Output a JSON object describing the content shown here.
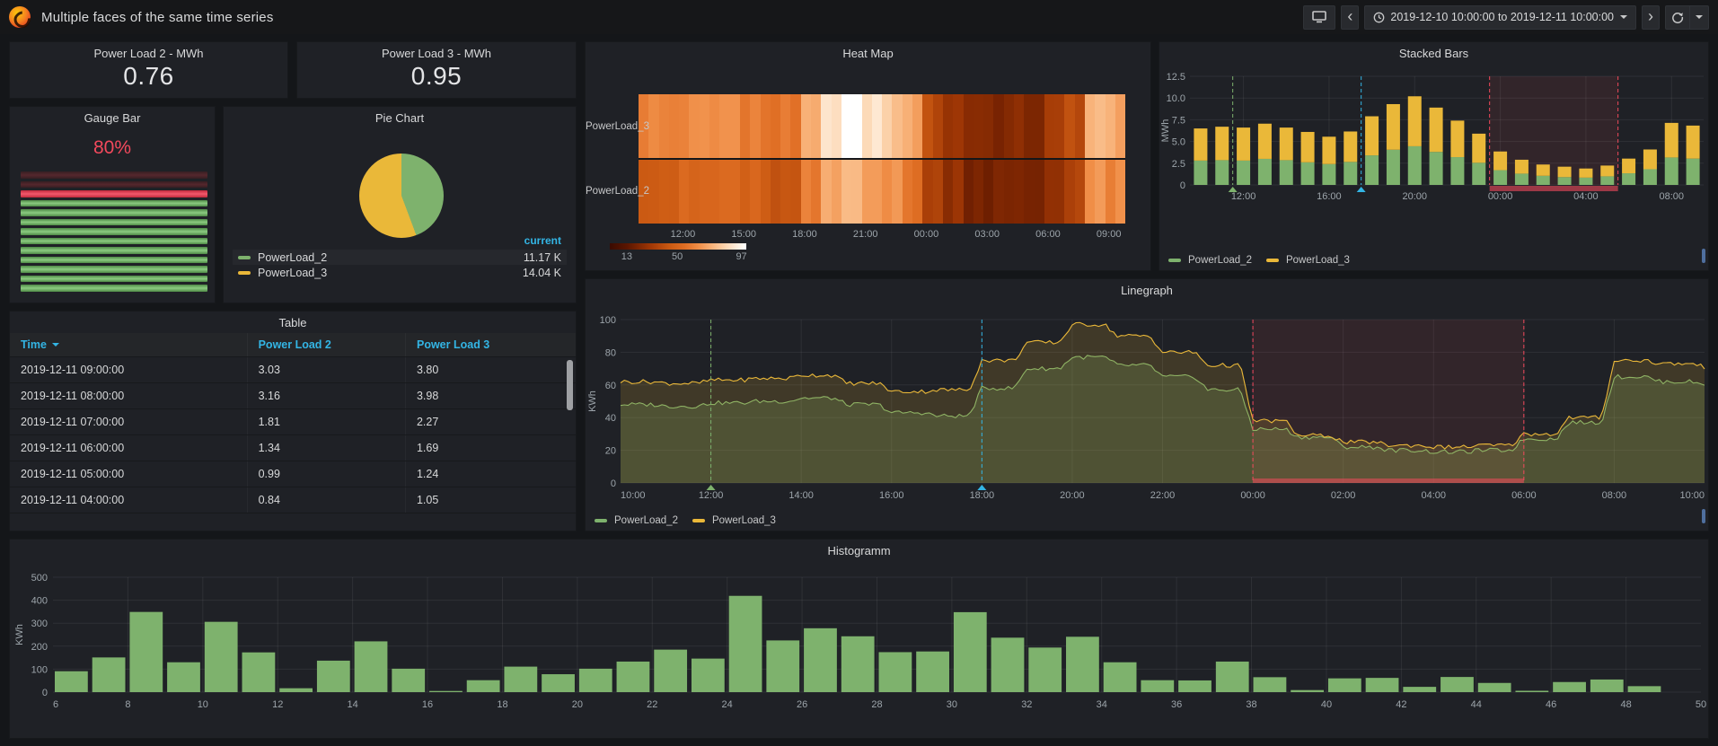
{
  "colors": {
    "green": "#7EB26D",
    "yellow": "#EAB839",
    "red": "#F2495C",
    "cyan": "#33B5E5",
    "blue_header": "#33B5E5",
    "axis_text": "#9da5ab",
    "grid": "rgba(255,255,255,0.07)"
  },
  "navbar": {
    "title": "Multiple faces of the same time series",
    "time_range": "2019-12-10 10:00:00 to 2019-12-11 10:00:00"
  },
  "panels": {
    "stat_pl2": {
      "title": "Power Load 2 - MWh",
      "value": "0.76"
    },
    "stat_pl3": {
      "title": "Power Load 3 - MWh",
      "value": "0.95"
    },
    "gauge": {
      "title": "Gauge Bar",
      "percent": "80%",
      "cells": [
        "unlit",
        "unlit",
        "threshold",
        "lit",
        "lit",
        "lit",
        "lit",
        "lit",
        "lit",
        "lit",
        "lit",
        "lit",
        "lit"
      ]
    },
    "pie": {
      "title": "Pie Chart",
      "legend_header": "current",
      "chart_data": {
        "type": "pie",
        "slices": [
          {
            "name": "PowerLoad_2",
            "value_label": "11.17 K",
            "value": 11170,
            "fraction": 0.443,
            "color": "#7EB26D"
          },
          {
            "name": "PowerLoad_3",
            "value_label": "14.04 K",
            "value": 14040,
            "fraction": 0.557,
            "color": "#EAB839"
          }
        ]
      }
    },
    "heatmap": {
      "title": "Heat Map",
      "row_labels": [
        "PowerLoad_3",
        "PowerLoad_2"
      ],
      "x_labels": [
        {
          "hour_index": 2,
          "label": "12:00"
        },
        {
          "hour_index": 5,
          "label": "15:00"
        },
        {
          "hour_index": 8,
          "label": "18:00"
        },
        {
          "hour_index": 11,
          "label": "21:00"
        },
        {
          "hour_index": 14,
          "label": "00:00"
        },
        {
          "hour_index": 17,
          "label": "03:00"
        },
        {
          "hour_index": 20,
          "label": "06:00"
        },
        {
          "hour_index": 23,
          "label": "09:00"
        }
      ],
      "scale_ticks": [
        {
          "value": 13,
          "label": "13"
        },
        {
          "value": 50,
          "label": "50"
        },
        {
          "value": 97,
          "label": "97"
        }
      ],
      "color_stops": [
        [
          0,
          "3a0b00"
        ],
        [
          13,
          "5c1600"
        ],
        [
          30,
          "a03705"
        ],
        [
          45,
          "cd5c14"
        ],
        [
          55,
          "e06e24"
        ],
        [
          65,
          "f08e47"
        ],
        [
          75,
          "f8b37a"
        ],
        [
          85,
          "fcd6b1"
        ],
        [
          93,
          "feeedd"
        ],
        [
          100,
          "ffffff"
        ]
      ],
      "chart_data": {
        "type": "heatmap",
        "hours": [
          "10:00",
          "11:00",
          "12:00",
          "13:00",
          "14:00",
          "15:00",
          "16:00",
          "17:00",
          "18:00",
          "19:00",
          "20:00",
          "21:00",
          "22:00",
          "23:00",
          "00:00",
          "01:00",
          "02:00",
          "03:00",
          "04:00",
          "05:00",
          "06:00",
          "07:00",
          "08:00",
          "09:00"
        ],
        "series": [
          {
            "name": "PowerLoad_3",
            "values": [
              62,
              61,
              63,
              64,
              66,
              61,
              56,
              57,
              75,
              86,
              97,
              90,
              80,
              72,
              38,
              29,
              25,
              23,
              22,
              23,
              30,
              40,
              75,
              73
            ]
          },
          {
            "name": "PowerLoad_2",
            "values": [
              48,
              47,
              49,
              50,
              52,
              48,
              43,
              41,
              58,
              70,
              77,
              72,
              65,
              57,
              33,
              28,
              22,
              20,
              19,
              20,
              27,
              37,
              65,
              62
            ]
          }
        ]
      }
    },
    "stacked": {
      "title": "Stacked Bars",
      "ylabel": "MWh",
      "y_ticks": [
        "0",
        "2.5",
        "5.0",
        "7.5",
        "10.0",
        "12.5"
      ],
      "y_max": 12.5,
      "x_labels": [
        {
          "hour_index": 2,
          "label": "12:00"
        },
        {
          "hour_index": 6,
          "label": "16:00"
        },
        {
          "hour_index": 10,
          "label": "20:00"
        },
        {
          "hour_index": 14,
          "label": "00:00"
        },
        {
          "hour_index": 18,
          "label": "04:00"
        },
        {
          "hour_index": 22,
          "label": "08:00"
        }
      ],
      "annotations": {
        "green_line_hour": 2,
        "cyan_line_hour": 8,
        "red_region_hours": [
          14,
          20
        ]
      },
      "chart_data": {
        "type": "bar",
        "stacked": true,
        "categories": [
          "10:00",
          "11:00",
          "12:00",
          "13:00",
          "14:00",
          "15:00",
          "16:00",
          "17:00",
          "18:00",
          "19:00",
          "20:00",
          "21:00",
          "22:00",
          "23:00",
          "00:00",
          "01:00",
          "02:00",
          "03:00",
          "04:00",
          "05:00",
          "06:00",
          "07:00",
          "08:00",
          "09:00"
        ],
        "series": [
          {
            "name": "PowerLoad_2",
            "color": "#7EB26D",
            "values": [
              2.8,
              2.85,
              2.8,
              3.0,
              2.85,
              2.6,
              2.4,
              2.65,
              3.4,
              4.05,
              4.45,
              3.8,
              3.2,
              2.55,
              1.7,
              1.3,
              1.05,
              0.9,
              0.84,
              0.99,
              1.34,
              1.81,
              3.16,
              3.03
            ]
          },
          {
            "name": "PowerLoad_3",
            "color": "#EAB839",
            "values": [
              3.7,
              3.85,
              3.8,
              4.05,
              3.75,
              3.5,
              3.15,
              3.5,
              4.5,
              5.25,
              5.75,
              5.1,
              4.2,
              3.35,
              2.15,
              1.6,
              1.3,
              1.2,
              1.05,
              1.24,
              1.69,
              2.27,
              3.98,
              3.8
            ]
          }
        ]
      }
    },
    "table": {
      "title": "Table",
      "columns": [
        "Time",
        "Power Load 2",
        "Power Load 3"
      ],
      "sorted_column": "Time",
      "rows": [
        [
          "2019-12-11 09:00:00",
          "3.03",
          "3.80"
        ],
        [
          "2019-12-11 08:00:00",
          "3.16",
          "3.98"
        ],
        [
          "2019-12-11 07:00:00",
          "1.81",
          "2.27"
        ],
        [
          "2019-12-11 06:00:00",
          "1.34",
          "1.69"
        ],
        [
          "2019-12-11 05:00:00",
          "0.99",
          "1.24"
        ],
        [
          "2019-12-11 04:00:00",
          "0.84",
          "1.05"
        ]
      ]
    },
    "line": {
      "title": "Linegraph",
      "ylabel": "KWh",
      "y_ticks": [
        "0",
        "20",
        "40",
        "60",
        "80",
        "100"
      ],
      "y_max": 100,
      "x_labels": [
        "10:00",
        "12:00",
        "14:00",
        "16:00",
        "18:00",
        "20:00",
        "22:00",
        "00:00",
        "02:00",
        "04:00",
        "06:00",
        "08:00",
        "10:00"
      ],
      "annotations": {
        "green_line_hour": 2,
        "cyan_line_hour": 8,
        "red_region_hours": [
          14,
          20
        ]
      },
      "chart_data": {
        "type": "line",
        "x_hours": [
          "10:00",
          "11:00",
          "12:00",
          "13:00",
          "14:00",
          "15:00",
          "16:00",
          "17:00",
          "18:00",
          "19:00",
          "20:00",
          "21:00",
          "22:00",
          "23:00",
          "00:00",
          "01:00",
          "02:00",
          "03:00",
          "04:00",
          "05:00",
          "06:00",
          "07:00",
          "08:00",
          "09:00",
          "10:00"
        ],
        "series": [
          {
            "name": "PowerLoad_2",
            "color": "#7EB26D",
            "hourly_values": [
              48,
              47,
              49,
              50,
              52,
              48,
              43,
              41,
              58,
              70,
              77,
              72,
              65,
              57,
              33,
              28,
              22,
              20,
              19,
              20,
              27,
              37,
              65,
              62,
              60
            ]
          },
          {
            "name": "PowerLoad_3",
            "color": "#EAB839",
            "hourly_values": [
              62,
              61,
              63,
              64,
              66,
              61,
              56,
              57,
              75,
              86,
              97,
              90,
              80,
              72,
              38,
              29,
              25,
              23,
              22,
              23,
              30,
              40,
              75,
              73,
              71
            ]
          }
        ]
      }
    },
    "histogram": {
      "title": "Histogramm",
      "ylabel": "KWh",
      "y_ticks": [
        "0",
        "100",
        "200",
        "300",
        "400",
        "500"
      ],
      "y_max": 500,
      "x_min": 6,
      "x_max": 50,
      "x_tick_step": 2,
      "chart_data": {
        "type": "bar",
        "bar_color": "#7EB26D",
        "categories": [
          6,
          7,
          8,
          9,
          10,
          11,
          12,
          13,
          14,
          15,
          16,
          17,
          18,
          19,
          20,
          21,
          22,
          23,
          24,
          25,
          26,
          27,
          28,
          29,
          30,
          31,
          32,
          33,
          34,
          35,
          36,
          37,
          38,
          39,
          40,
          41,
          42,
          43,
          44,
          45,
          46,
          47,
          48
        ],
        "values": [
          91,
          151,
          349,
          130,
          306,
          173,
          17,
          137,
          221,
          102,
          5,
          52,
          111,
          78,
          102,
          133,
          185,
          146,
          419,
          225,
          278,
          243,
          174,
          177,
          348,
          237,
          194,
          241,
          130,
          52,
          51,
          133,
          65,
          9,
          60,
          62,
          23,
          66,
          40,
          6,
          44,
          55,
          26
        ]
      }
    }
  }
}
